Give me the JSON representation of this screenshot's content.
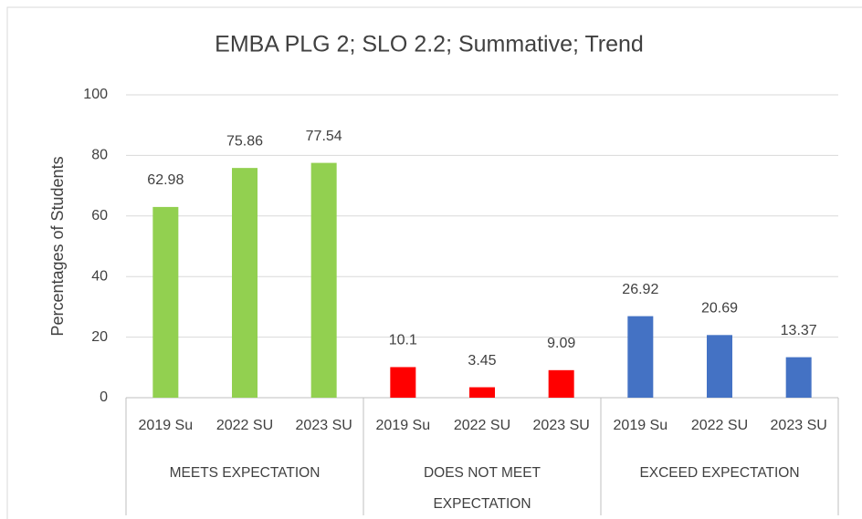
{
  "chart_data": {
    "type": "bar",
    "title": "EMBA PLG 2; SLO 2.2; Summative; Trend",
    "y_label": "Percentages of Students",
    "groups": [
      {
        "name": "MEETS EXPECTATION",
        "color": "#92d050",
        "categories": [
          "2019 Su",
          "2022 SU",
          "2023 SU"
        ],
        "values": [
          62.98,
          75.86,
          77.54
        ]
      },
      {
        "name": "DOES NOT MEET EXPECTATION",
        "color": "#ff0000",
        "categories": [
          "2019 Su",
          "2022 SU",
          "2023 SU"
        ],
        "values": [
          10.1,
          3.45,
          9.09
        ]
      },
      {
        "name": "EXCEED EXPECTATION",
        "color": "#4472c4",
        "categories": [
          "2019 Su",
          "2022 SU",
          "2023 SU"
        ],
        "values": [
          26.92,
          20.69,
          13.37
        ]
      }
    ],
    "ylim": [
      0,
      100
    ],
    "yticks": [
      0,
      20,
      40,
      60,
      80,
      100
    ],
    "grid": true
  }
}
